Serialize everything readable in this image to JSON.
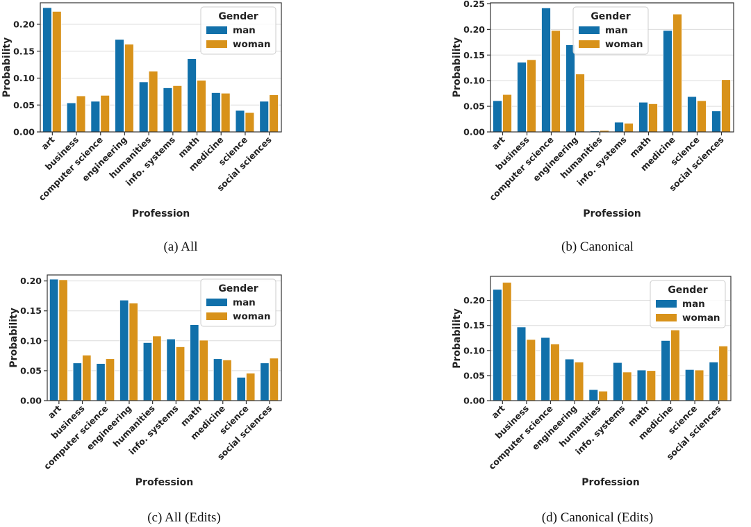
{
  "colors": {
    "man": "#1170aa",
    "woman": "#d8921a"
  },
  "chart_data": [
    {
      "caption": "(a) All",
      "type": "bar",
      "xlabel": "Profession",
      "ylabel": "Probability",
      "legend_title": "Gender",
      "legend_position": "top-right",
      "categories": [
        "art",
        "business",
        "computer science",
        "engineering",
        "humanities",
        "info. systems",
        "math",
        "medicine",
        "science",
        "social sciences"
      ],
      "series": [
        {
          "name": "man",
          "values": [
            0.231,
            0.054,
            0.057,
            0.172,
            0.093,
            0.082,
            0.136,
            0.073,
            0.04,
            0.057
          ]
        },
        {
          "name": "woman",
          "values": [
            0.224,
            0.067,
            0.068,
            0.163,
            0.113,
            0.086,
            0.096,
            0.072,
            0.036,
            0.069
          ]
        }
      ],
      "ylim": [
        0,
        0.24
      ],
      "yticks": [
        "0.00",
        "0.05",
        "0.10",
        "0.15",
        "0.20"
      ],
      "grid": true
    },
    {
      "caption": "(b) Canonical",
      "type": "bar",
      "xlabel": "Profession",
      "ylabel": "Probability",
      "legend_title": "Gender",
      "legend_position": "top-center",
      "categories": [
        "art",
        "business",
        "computer science",
        "engineering",
        "humanities",
        "info. systems",
        "math",
        "medicine",
        "science",
        "social sciences"
      ],
      "series": [
        {
          "name": "man",
          "values": [
            0.061,
            0.136,
            0.242,
            0.17,
            0.002,
            0.019,
            0.058,
            0.198,
            0.069,
            0.041
          ]
        },
        {
          "name": "woman",
          "values": [
            0.073,
            0.141,
            0.198,
            0.113,
            0.003,
            0.017,
            0.055,
            0.23,
            0.061,
            0.102
          ]
        }
      ],
      "ylim": [
        0,
        0.252
      ],
      "yticks": [
        "0.00",
        "0.05",
        "0.10",
        "0.15",
        "0.20",
        "0.25"
      ],
      "grid": true
    },
    {
      "caption": "(c) All (Edits)",
      "type": "bar",
      "xlabel": "Profession",
      "ylabel": "Probability",
      "legend_title": "Gender",
      "legend_position": "top-right",
      "categories": [
        "art",
        "business",
        "computer science",
        "engineering",
        "humanities",
        "info. systems",
        "math",
        "medicine",
        "science",
        "social sciences"
      ],
      "series": [
        {
          "name": "man",
          "values": [
            0.203,
            0.063,
            0.062,
            0.168,
            0.097,
            0.103,
            0.127,
            0.07,
            0.039,
            0.063
          ]
        },
        {
          "name": "woman",
          "values": [
            0.202,
            0.076,
            0.07,
            0.163,
            0.108,
            0.09,
            0.101,
            0.068,
            0.046,
            0.071
          ]
        }
      ],
      "ylim": [
        0,
        0.21
      ],
      "yticks": [
        "0.00",
        "0.05",
        "0.10",
        "0.15",
        "0.20"
      ],
      "grid": true
    },
    {
      "caption": "(d) Canonical (Edits)",
      "type": "bar",
      "xlabel": "Profession",
      "ylabel": "Probability",
      "legend_title": "Gender",
      "legend_position": "top-right",
      "categories": [
        "art",
        "business",
        "computer science",
        "engineering",
        "humanities",
        "info. systems",
        "math",
        "medicine",
        "science",
        "social sciences"
      ],
      "series": [
        {
          "name": "man",
          "values": [
            0.222,
            0.147,
            0.126,
            0.083,
            0.022,
            0.076,
            0.061,
            0.12,
            0.062,
            0.077
          ]
        },
        {
          "name": "woman",
          "values": [
            0.236,
            0.122,
            0.113,
            0.077,
            0.019,
            0.057,
            0.06,
            0.141,
            0.061,
            0.109
          ]
        }
      ],
      "ylim": [
        0,
        0.248
      ],
      "yticks": [
        "0.00",
        "0.05",
        "0.10",
        "0.15",
        "0.20"
      ],
      "grid": true
    }
  ]
}
